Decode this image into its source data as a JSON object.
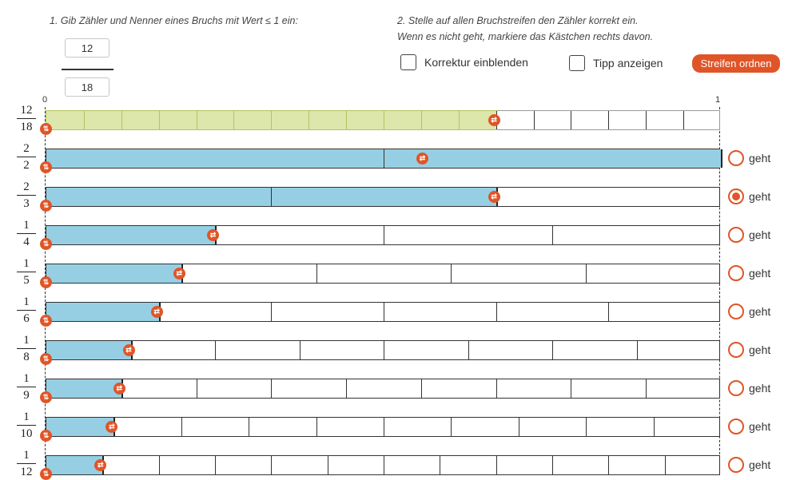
{
  "instructions": {
    "step1": "1. Gib Zähler und Nenner eines Bruchs mit Wert ≤ 1 ein:",
    "step2_line1": "2. Stelle auf allen Bruchstreifen den Zähler korrekt ein.",
    "step2_line2": "Wenn es nicht geht, markiere das Kästchen rechts davon."
  },
  "input": {
    "numerator": "12",
    "denominator": "18"
  },
  "options": {
    "correction_label": "Korrektur einblenden",
    "tip_label": "Tipp anzeigen",
    "order_button": "Streifen ordnen"
  },
  "axis": {
    "start": "0",
    "end": "1"
  },
  "colors": {
    "target_fill": "#dde6ab",
    "target_border": "#b7c25f",
    "strip_fill": "#96cfe4",
    "accent": "#e05527"
  },
  "strips": [
    {
      "num": "12",
      "den": "18",
      "n": 12,
      "d": 18,
      "target": true
    },
    {
      "num": "2",
      "den": "2",
      "n": 2,
      "d": 2,
      "radio_label": "geht",
      "radio_checked": false
    },
    {
      "num": "2",
      "den": "3",
      "n": 2,
      "d": 3,
      "radio_label": "geht",
      "radio_checked": true
    },
    {
      "num": "1",
      "den": "4",
      "n": 1,
      "d": 4,
      "radio_label": "geht",
      "radio_checked": false
    },
    {
      "num": "1",
      "den": "5",
      "n": 1,
      "d": 5,
      "radio_label": "geht",
      "radio_checked": false
    },
    {
      "num": "1",
      "den": "6",
      "n": 1,
      "d": 6,
      "radio_label": "geht",
      "radio_checked": false
    },
    {
      "num": "1",
      "den": "8",
      "n": 1,
      "d": 8,
      "radio_label": "geht",
      "radio_checked": false
    },
    {
      "num": "1",
      "den": "9",
      "n": 1,
      "d": 9,
      "radio_label": "geht",
      "radio_checked": false
    },
    {
      "num": "1",
      "den": "10",
      "n": 1,
      "d": 10,
      "radio_label": "geht",
      "radio_checked": false
    },
    {
      "num": "1",
      "den": "12",
      "n": 1,
      "d": 12,
      "radio_label": "geht",
      "radio_checked": false
    }
  ]
}
